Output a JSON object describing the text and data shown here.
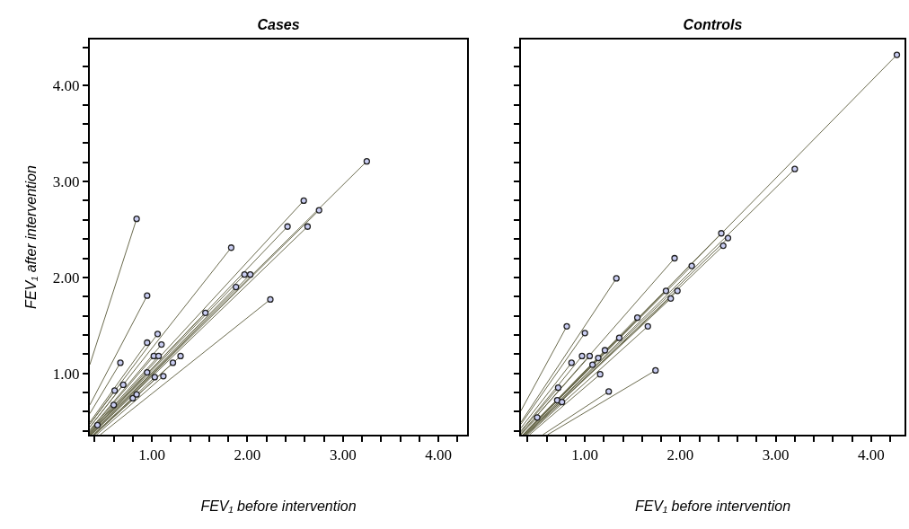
{
  "chart_data": [
    {
      "type": "scatter",
      "title": "Cases",
      "xlabel": "FEV₁ before intervention",
      "ylabel": "FEV₁ after intervention",
      "marker": "circle",
      "grid": false,
      "series": [
        {
          "color": "#c9cdf2",
          "x": [
            0.84,
            3.25,
            2.59,
            2.75,
            2.42,
            2.63,
            1.83,
            1.97,
            2.03,
            1.88,
            0.95,
            2.24,
            1.56,
            1.06,
            0.95,
            1.1,
            1.02,
            1.07,
            1.3,
            1.22,
            0.67,
            1.12,
            1.03,
            0.7,
            0.61,
            0.8,
            0.84,
            0.6,
            0.43,
            0.95
          ],
          "values": [
            2.61,
            3.21,
            2.8,
            2.7,
            2.53,
            2.53,
            2.31,
            2.03,
            2.03,
            1.9,
            1.81,
            1.77,
            1.63,
            1.41,
            1.32,
            1.3,
            1.18,
            1.18,
            1.18,
            1.11,
            1.11,
            0.97,
            0.96,
            0.88,
            0.82,
            0.74,
            0.78,
            0.67,
            0.46,
            1.01
          ]
        },
        {
          "type": "line",
          "marker": "none",
          "color": "#6b6b4e",
          "x": [
            0.35,
            0.84
          ],
          "values": [
            1.09,
            2.61
          ]
        },
        {
          "type": "line",
          "marker": "none",
          "color": "#6b6b4e",
          "x": [
            0.36,
            3.25
          ],
          "values": [
            0.36,
            3.21
          ]
        },
        {
          "type": "line",
          "marker": "none",
          "color": "#6b6b4e",
          "x": [
            0.35,
            2.59
          ],
          "values": [
            0.38,
            2.8
          ]
        },
        {
          "type": "line",
          "marker": "none",
          "color": "#6b6b4e",
          "x": [
            0.37,
            2.75
          ],
          "values": [
            0.36,
            2.7
          ]
        },
        {
          "type": "line",
          "marker": "none",
          "color": "#6b6b4e",
          "x": [
            0.35,
            2.42
          ],
          "values": [
            0.37,
            2.53
          ]
        },
        {
          "type": "line",
          "marker": "none",
          "color": "#6b6b4e",
          "x": [
            0.37,
            2.63
          ],
          "values": [
            0.36,
            2.53
          ]
        },
        {
          "type": "line",
          "marker": "none",
          "color": "#6b6b4e",
          "x": [
            0.35,
            1.83
          ],
          "values": [
            0.44,
            2.31
          ]
        },
        {
          "type": "line",
          "marker": "none",
          "color": "#6b6b4e",
          "x": [
            0.35,
            1.97
          ],
          "values": [
            0.36,
            2.03
          ]
        },
        {
          "type": "line",
          "marker": "none",
          "color": "#6b6b4e",
          "x": [
            0.36,
            2.03
          ],
          "values": [
            0.36,
            2.03
          ]
        },
        {
          "type": "line",
          "marker": "none",
          "color": "#6b6b4e",
          "x": [
            0.36,
            1.88
          ],
          "values": [
            0.36,
            1.9
          ]
        },
        {
          "type": "line",
          "marker": "none",
          "color": "#6b6b4e",
          "x": [
            0.35,
            0.95
          ],
          "values": [
            0.67,
            1.81
          ]
        },
        {
          "type": "line",
          "marker": "none",
          "color": "#6b6b4e",
          "x": [
            0.46,
            2.24
          ],
          "values": [
            0.36,
            1.77
          ]
        },
        {
          "type": "line",
          "marker": "none",
          "color": "#6b6b4e",
          "x": [
            0.35,
            1.56
          ],
          "values": [
            0.37,
            1.63
          ]
        },
        {
          "type": "line",
          "marker": "none",
          "color": "#6b6b4e",
          "x": [
            0.35,
            1.06
          ],
          "values": [
            0.47,
            1.41
          ]
        },
        {
          "type": "line",
          "marker": "none",
          "color": "#6b6b4e",
          "x": [
            0.35,
            0.95
          ],
          "values": [
            0.49,
            1.32
          ]
        },
        {
          "type": "line",
          "marker": "none",
          "color": "#6b6b4e",
          "x": [
            0.35,
            1.1
          ],
          "values": [
            0.41,
            1.3
          ]
        },
        {
          "type": "line",
          "marker": "none",
          "color": "#6b6b4e",
          "x": [
            0.35,
            1.02
          ],
          "values": [
            0.4,
            1.18
          ]
        },
        {
          "type": "line",
          "marker": "none",
          "color": "#6b6b4e",
          "x": [
            0.35,
            1.07
          ],
          "values": [
            0.39,
            1.18
          ]
        },
        {
          "type": "line",
          "marker": "none",
          "color": "#6b6b4e",
          "x": [
            0.4,
            1.3
          ],
          "values": [
            0.36,
            1.18
          ]
        },
        {
          "type": "line",
          "marker": "none",
          "color": "#6b6b4e",
          "x": [
            0.4,
            1.22
          ],
          "values": [
            0.36,
            1.11
          ]
        },
        {
          "type": "line",
          "marker": "none",
          "color": "#6b6b4e",
          "x": [
            0.35,
            0.67
          ],
          "values": [
            0.58,
            1.11
          ]
        },
        {
          "type": "line",
          "marker": "none",
          "color": "#6b6b4e",
          "x": [
            0.42,
            1.12
          ],
          "values": [
            0.36,
            0.97
          ]
        },
        {
          "type": "line",
          "marker": "none",
          "color": "#6b6b4e",
          "x": [
            0.39,
            1.03
          ],
          "values": [
            0.36,
            0.96
          ]
        },
        {
          "type": "line",
          "marker": "none",
          "color": "#6b6b4e",
          "x": [
            0.35,
            0.7
          ],
          "values": [
            0.44,
            0.88
          ]
        },
        {
          "type": "line",
          "marker": "none",
          "color": "#6b6b4e",
          "x": [
            0.35,
            0.61
          ],
          "values": [
            0.47,
            0.82
          ]
        },
        {
          "type": "line",
          "marker": "none",
          "color": "#6b6b4e",
          "x": [
            0.39,
            0.8
          ],
          "values": [
            0.36,
            0.74
          ]
        },
        {
          "type": "line",
          "marker": "none",
          "color": "#6b6b4e",
          "x": [
            0.39,
            0.84
          ],
          "values": [
            0.36,
            0.78
          ]
        },
        {
          "type": "line",
          "marker": "none",
          "color": "#6b6b4e",
          "x": [
            0.35,
            0.6
          ],
          "values": [
            0.39,
            0.67
          ]
        },
        {
          "type": "line",
          "marker": "none",
          "color": "#6b6b4e",
          "x": [
            0.35,
            0.43
          ],
          "values": [
            0.37,
            0.46
          ]
        },
        {
          "type": "line",
          "marker": "none",
          "color": "#6b6b4e",
          "x": [
            0.35,
            0.95
          ],
          "values": [
            0.37,
            1.01
          ]
        }
      ],
      "xlim": [
        0.35,
        4.3
      ],
      "ylim": [
        0.36,
        4.48
      ],
      "xticks": [
        {
          "value": 0.4,
          "label": null
        },
        {
          "value": 0.6,
          "label": null
        },
        {
          "value": 0.8,
          "label": null
        },
        {
          "value": 1,
          "label": "1.00"
        },
        {
          "value": 1.2,
          "label": null
        },
        {
          "value": 1.4,
          "label": null
        },
        {
          "value": 1.6,
          "label": null
        },
        {
          "value": 1.8,
          "label": null
        },
        {
          "value": 2,
          "label": "2.00"
        },
        {
          "value": 2.2,
          "label": null
        },
        {
          "value": 2.4,
          "label": null
        },
        {
          "value": 2.6,
          "label": null
        },
        {
          "value": 2.8,
          "label": null
        },
        {
          "value": 3,
          "label": "3.00"
        },
        {
          "value": 3.2,
          "label": null
        },
        {
          "value": 3.4,
          "label": null
        },
        {
          "value": 3.6,
          "label": null
        },
        {
          "value": 3.8,
          "label": null
        },
        {
          "value": 4,
          "label": "4.00"
        },
        {
          "value": 4.2,
          "label": null
        }
      ],
      "yticks": [
        {
          "value": 0.4,
          "label": null
        },
        {
          "value": 0.6,
          "label": null
        },
        {
          "value": 0.8,
          "label": null
        },
        {
          "value": 1,
          "label": "1.00"
        },
        {
          "value": 1.2,
          "label": null
        },
        {
          "value": 1.4,
          "label": null
        },
        {
          "value": 1.6,
          "label": null
        },
        {
          "value": 1.8,
          "label": null
        },
        {
          "value": 2,
          "label": "2.00"
        },
        {
          "value": 2.2,
          "label": null
        },
        {
          "value": 2.4,
          "label": null
        },
        {
          "value": 2.6,
          "label": null
        },
        {
          "value": 2.8,
          "label": null
        },
        {
          "value": 3,
          "label": "3.00"
        },
        {
          "value": 3.2,
          "label": null
        },
        {
          "value": 3.4,
          "label": null
        },
        {
          "value": 3.6,
          "label": null
        },
        {
          "value": 3.8,
          "label": null
        },
        {
          "value": 4,
          "label": "4.00"
        },
        {
          "value": 4.2,
          "label": null
        },
        {
          "value": 4.4,
          "label": null
        }
      ]
    },
    {
      "type": "scatter",
      "title": "Controls",
      "xlabel": "FEV₁ before intervention",
      "marker": "circle",
      "grid": false,
      "tick_labels": "x",
      "series": [
        {
          "color": "#c9cdf2",
          "x": [
            4.27,
            3.2,
            2.43,
            2.5,
            2.45,
            1.94,
            2.12,
            1.33,
            1.85,
            1.97,
            1.9,
            1.55,
            1.66,
            0.81,
            1.0,
            1.36,
            1.21,
            0.97,
            1.05,
            1.14,
            0.86,
            1.08,
            1.16,
            1.74,
            1.25,
            0.72,
            0.71,
            0.76,
            0.5
          ],
          "values": [
            4.32,
            3.13,
            2.46,
            2.41,
            2.33,
            2.2,
            2.12,
            1.99,
            1.86,
            1.86,
            1.78,
            1.58,
            1.49,
            1.49,
            1.42,
            1.37,
            1.24,
            1.18,
            1.18,
            1.16,
            1.11,
            1.09,
            0.99,
            1.03,
            0.81,
            0.85,
            0.72,
            0.7,
            0.54
          ]
        },
        {
          "type": "line",
          "marker": "none",
          "color": "#6b6b4e",
          "x": [
            0.36,
            4.27
          ],
          "values": [
            0.36,
            4.32
          ]
        },
        {
          "type": "line",
          "marker": "none",
          "color": "#6b6b4e",
          "x": [
            0.37,
            3.2
          ],
          "values": [
            0.36,
            3.13
          ]
        },
        {
          "type": "line",
          "marker": "none",
          "color": "#6b6b4e",
          "x": [
            0.36,
            2.43
          ],
          "values": [
            0.36,
            2.46
          ]
        },
        {
          "type": "line",
          "marker": "none",
          "color": "#6b6b4e",
          "x": [
            0.37,
            2.5
          ],
          "values": [
            0.36,
            2.41
          ]
        },
        {
          "type": "line",
          "marker": "none",
          "color": "#6b6b4e",
          "x": [
            0.38,
            2.45
          ],
          "values": [
            0.36,
            2.33
          ]
        },
        {
          "type": "line",
          "marker": "none",
          "color": "#6b6b4e",
          "x": [
            0.33,
            1.94
          ],
          "values": [
            0.37,
            2.2
          ]
        },
        {
          "type": "line",
          "marker": "none",
          "color": "#6b6b4e",
          "x": [
            0.36,
            2.12
          ],
          "values": [
            0.36,
            2.12
          ]
        },
        {
          "type": "line",
          "marker": "none",
          "color": "#6b6b4e",
          "x": [
            0.33,
            1.33
          ],
          "values": [
            0.49,
            1.99
          ]
        },
        {
          "type": "line",
          "marker": "none",
          "color": "#6b6b4e",
          "x": [
            0.36,
            1.85
          ],
          "values": [
            0.36,
            1.86
          ]
        },
        {
          "type": "line",
          "marker": "none",
          "color": "#6b6b4e",
          "x": [
            0.38,
            1.97
          ],
          "values": [
            0.36,
            1.86
          ]
        },
        {
          "type": "line",
          "marker": "none",
          "color": "#6b6b4e",
          "x": [
            0.38,
            1.9
          ],
          "values": [
            0.36,
            1.78
          ]
        },
        {
          "type": "line",
          "marker": "none",
          "color": "#6b6b4e",
          "x": [
            0.35,
            1.55
          ],
          "values": [
            0.36,
            1.58
          ]
        },
        {
          "type": "line",
          "marker": "none",
          "color": "#6b6b4e",
          "x": [
            0.4,
            1.66
          ],
          "values": [
            0.36,
            1.49
          ]
        },
        {
          "type": "line",
          "marker": "none",
          "color": "#6b6b4e",
          "x": [
            0.33,
            0.81
          ],
          "values": [
            0.61,
            1.49
          ]
        },
        {
          "type": "line",
          "marker": "none",
          "color": "#6b6b4e",
          "x": [
            0.33,
            1.0
          ],
          "values": [
            0.47,
            1.42
          ]
        },
        {
          "type": "line",
          "marker": "none",
          "color": "#6b6b4e",
          "x": [
            0.35,
            1.21
          ],
          "values": [
            0.36,
            1.24
          ]
        },
        {
          "type": "line",
          "marker": "none",
          "color": "#6b6b4e",
          "x": [
            0.33,
            0.97
          ],
          "values": [
            0.4,
            1.18
          ]
        },
        {
          "type": "line",
          "marker": "none",
          "color": "#6b6b4e",
          "x": [
            0.33,
            1.05
          ],
          "values": [
            0.37,
            1.18
          ]
        },
        {
          "type": "line",
          "marker": "none",
          "color": "#6b6b4e",
          "x": [
            0.35,
            1.14
          ],
          "values": [
            0.36,
            1.16
          ]
        },
        {
          "type": "line",
          "marker": "none",
          "color": "#6b6b4e",
          "x": [
            0.33,
            0.86
          ],
          "values": [
            0.43,
            1.11
          ]
        },
        {
          "type": "line",
          "marker": "none",
          "color": "#6b6b4e",
          "x": [
            0.42,
            1.16
          ],
          "values": [
            0.36,
            0.99
          ]
        },
        {
          "type": "line",
          "marker": "none",
          "color": "#6b6b4e",
          "x": [
            0.61,
            1.74
          ],
          "values": [
            0.36,
            1.03
          ]
        },
        {
          "type": "line",
          "marker": "none",
          "color": "#6b6b4e",
          "x": [
            0.56,
            1.25
          ],
          "values": [
            0.36,
            0.81
          ]
        },
        {
          "type": "line",
          "marker": "none",
          "color": "#6b6b4e",
          "x": [
            0.33,
            0.72
          ],
          "values": [
            0.39,
            0.85
          ]
        },
        {
          "type": "line",
          "marker": "none",
          "color": "#6b6b4e",
          "x": [
            0.39,
            0.76
          ],
          "values": [
            0.36,
            0.7
          ]
        },
        {
          "type": "line",
          "marker": "none",
          "color": "#6b6b4e",
          "x": [
            0.33,
            0.5
          ],
          "values": [
            0.36,
            0.54
          ]
        }
      ],
      "xlim": [
        0.33,
        4.35
      ],
      "ylim": [
        0.36,
        4.48
      ],
      "xticks": [
        {
          "value": 0.4,
          "label": null
        },
        {
          "value": 0.6,
          "label": null
        },
        {
          "value": 0.8,
          "label": null
        },
        {
          "value": 1,
          "label": "1.00"
        },
        {
          "value": 1.2,
          "label": null
        },
        {
          "value": 1.4,
          "label": null
        },
        {
          "value": 1.6,
          "label": null
        },
        {
          "value": 1.8,
          "label": null
        },
        {
          "value": 2,
          "label": "2.00"
        },
        {
          "value": 2.2,
          "label": null
        },
        {
          "value": 2.4,
          "label": null
        },
        {
          "value": 2.6,
          "label": null
        },
        {
          "value": 2.8,
          "label": null
        },
        {
          "value": 3,
          "label": "3.00"
        },
        {
          "value": 3.2,
          "label": null
        },
        {
          "value": 3.4,
          "label": null
        },
        {
          "value": 3.6,
          "label": null
        },
        {
          "value": 3.8,
          "label": null
        },
        {
          "value": 4,
          "label": "4.00"
        },
        {
          "value": 4.2,
          "label": null
        }
      ],
      "yticks": [
        {
          "value": 0.4,
          "label": null
        },
        {
          "value": 0.6,
          "label": null
        },
        {
          "value": 0.8,
          "label": null
        },
        {
          "value": 1,
          "label": null
        },
        {
          "value": 1.2,
          "label": null
        },
        {
          "value": 1.4,
          "label": null
        },
        {
          "value": 1.6,
          "label": null
        },
        {
          "value": 1.8,
          "label": null
        },
        {
          "value": 2,
          "label": null
        },
        {
          "value": 2.2,
          "label": null
        },
        {
          "value": 2.4,
          "label": null
        },
        {
          "value": 2.6,
          "label": null
        },
        {
          "value": 2.8,
          "label": null
        },
        {
          "value": 3,
          "label": null
        },
        {
          "value": 3.2,
          "label": null
        },
        {
          "value": 3.4,
          "label": null
        },
        {
          "value": 3.6,
          "label": null
        },
        {
          "value": 3.8,
          "label": null
        },
        {
          "value": 4,
          "label": null
        },
        {
          "value": 4.2,
          "label": null
        },
        {
          "value": 4.4,
          "label": null
        }
      ]
    }
  ]
}
